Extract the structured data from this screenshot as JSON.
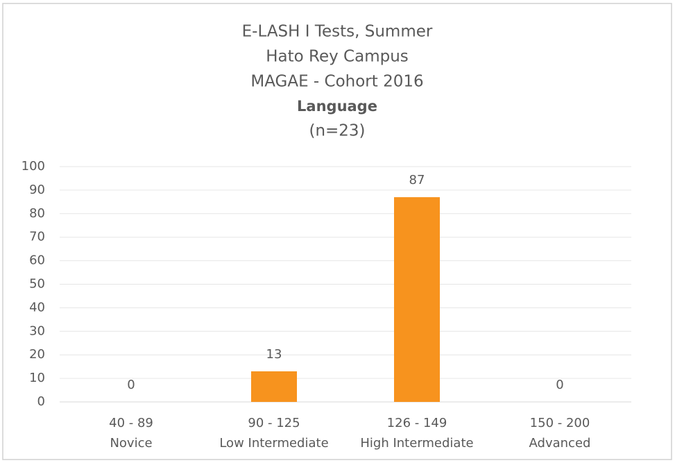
{
  "chart_data": {
    "type": "bar",
    "title": [
      "E-LASH I Tests, Summer",
      "Hato Rey Campus",
      "MAGAE - Cohort 2016",
      "Language",
      "(n=23)"
    ],
    "categories": [
      [
        "40 - 89",
        "Novice"
      ],
      [
        "90 - 125",
        "Low Intermediate"
      ],
      [
        "126 - 149",
        "High Intermediate"
      ],
      [
        "150 - 200",
        "Advanced"
      ]
    ],
    "values": [
      0,
      13,
      87,
      0
    ],
    "color": "#f7931e",
    "ylim": [
      0,
      100
    ],
    "yticks": [
      0,
      10,
      20,
      30,
      40,
      50,
      60,
      70,
      80,
      90,
      100
    ],
    "grid": true
  }
}
